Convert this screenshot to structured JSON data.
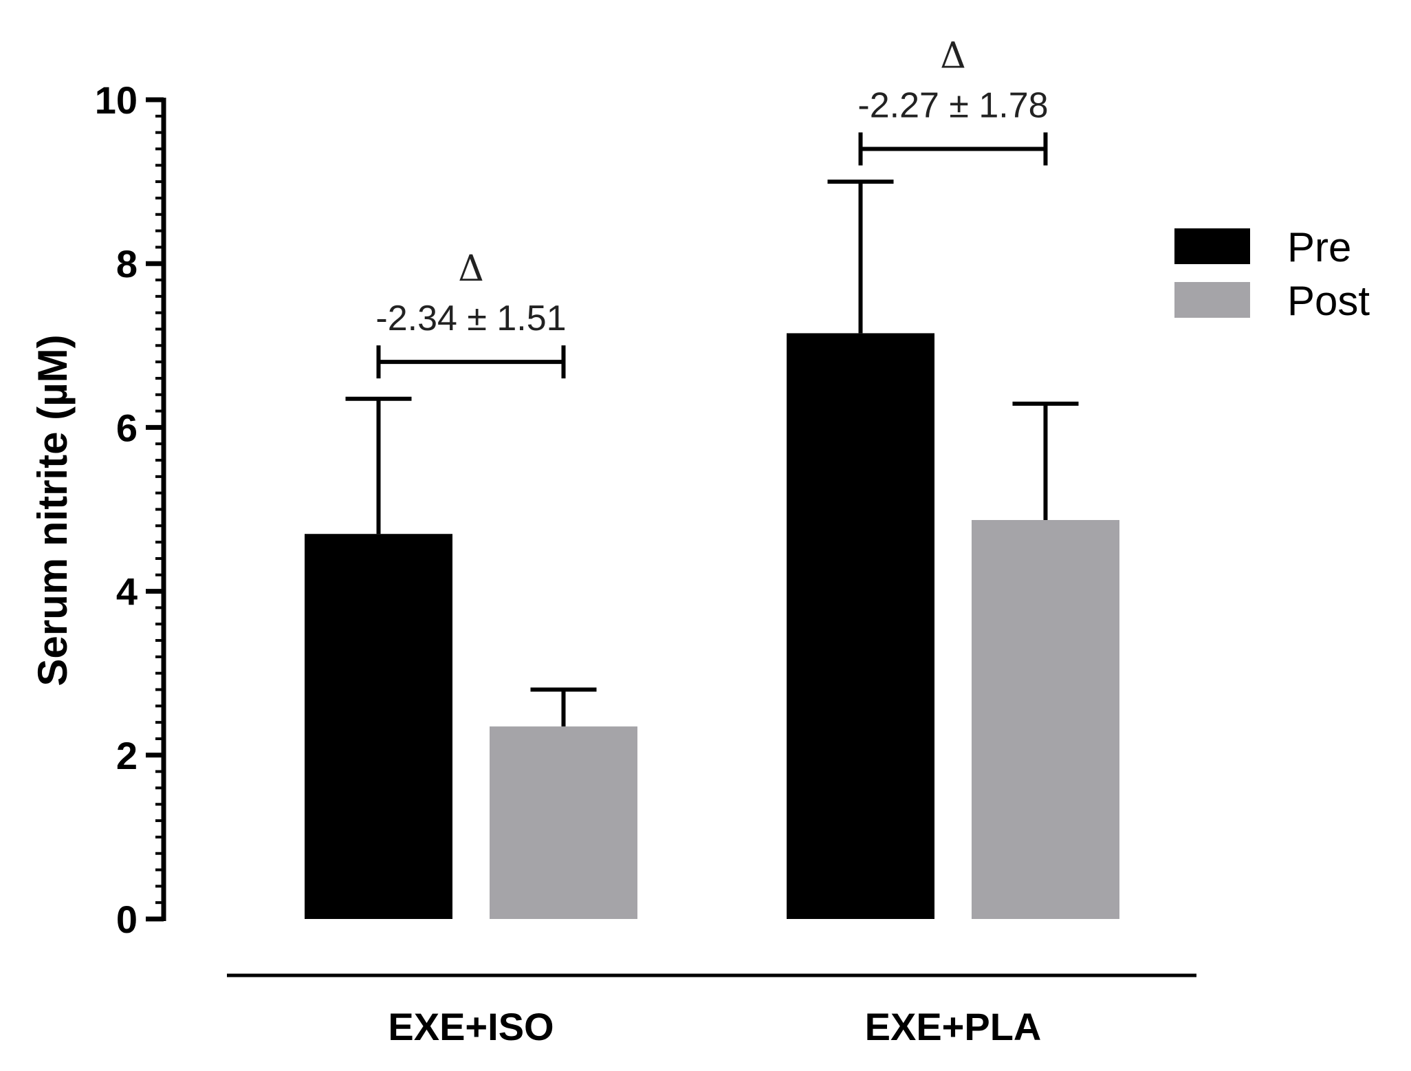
{
  "chart_data": {
    "type": "bar",
    "categories": [
      "EXE+ISO",
      "EXE+PLA"
    ],
    "series": [
      {
        "name": "Pre",
        "color": "#000000",
        "values": [
          4.7,
          7.15
        ],
        "errors": [
          1.65,
          1.85
        ]
      },
      {
        "name": "Post",
        "color": "#a5a4a8",
        "values": [
          2.35,
          4.87
        ],
        "errors": [
          0.45,
          1.42
        ]
      }
    ],
    "title": "",
    "xlabel": "",
    "ylabel": "Serum nitrite (µM)",
    "ylim": [
      0,
      10
    ],
    "yticks": [
      0,
      2,
      4,
      6,
      8,
      10
    ],
    "minor_ticks_per_major": 10,
    "grid": false,
    "legend_position": "right",
    "annotations": [
      {
        "category": "EXE+ISO",
        "symbol": "Δ",
        "text": "-2.34 ± 1.51",
        "bracket_y": 6.8
      },
      {
        "category": "EXE+PLA",
        "symbol": "Δ",
        "text": "-2.27 ± 1.78",
        "bracket_y": 9.4
      }
    ]
  }
}
